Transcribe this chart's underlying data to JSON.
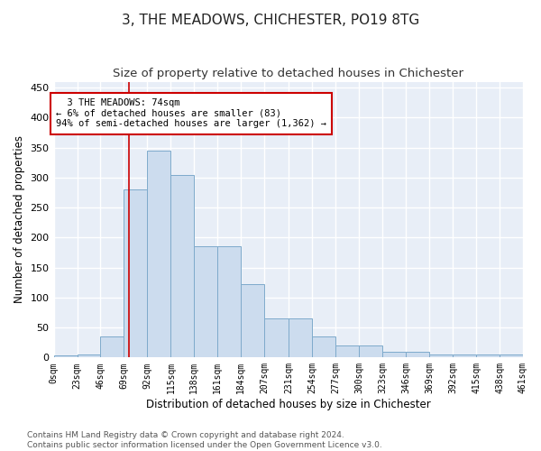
{
  "title": "3, THE MEADOWS, CHICHESTER, PO19 8TG",
  "subtitle": "Size of property relative to detached houses in Chichester",
  "xlabel": "Distribution of detached houses by size in Chichester",
  "ylabel": "Number of detached properties",
  "bar_color": "#ccdcee",
  "bar_edge_color": "#7eaacb",
  "annotation_box_color": "#ffffff",
  "annotation_box_edge": "#cc0000",
  "annotation_text_line1": "3 THE MEADOWS: 74sqm",
  "annotation_text_line2": "← 6% of detached houses are smaller (83)",
  "annotation_text_line3": "94% of semi-detached houses are larger (1,362) →",
  "property_line_x": 74,
  "bar_values": [
    3,
    5,
    35,
    280,
    345,
    305,
    185,
    185,
    122,
    65,
    65,
    35,
    20,
    20,
    10,
    10,
    5,
    5,
    5,
    5
  ],
  "bin_edges": [
    0,
    23,
    46,
    69,
    92,
    115,
    138,
    161,
    184,
    207,
    231,
    254,
    277,
    300,
    323,
    346,
    369,
    392,
    415,
    438,
    461
  ],
  "tick_labels": [
    "0sqm",
    "23sqm",
    "46sqm",
    "69sqm",
    "92sqm",
    "115sqm",
    "138sqm",
    "161sqm",
    "184sqm",
    "207sqm",
    "231sqm",
    "254sqm",
    "277sqm",
    "300sqm",
    "323sqm",
    "346sqm",
    "369sqm",
    "392sqm",
    "415sqm",
    "438sqm",
    "461sqm"
  ],
  "ylim": [
    0,
    460
  ],
  "yticks": [
    0,
    50,
    100,
    150,
    200,
    250,
    300,
    350,
    400,
    450
  ],
  "footnote1": "Contains HM Land Registry data © Crown copyright and database right 2024.",
  "footnote2": "Contains public sector information licensed under the Open Government Licence v3.0.",
  "fig_bg_color": "#ffffff",
  "plot_bg_color": "#e8eef7",
  "grid_color": "#ffffff",
  "title_fontsize": 11,
  "subtitle_fontsize": 9.5,
  "axis_label_fontsize": 8.5,
  "tick_fontsize": 7,
  "annotation_fontsize": 7.5,
  "footnote_fontsize": 6.5
}
